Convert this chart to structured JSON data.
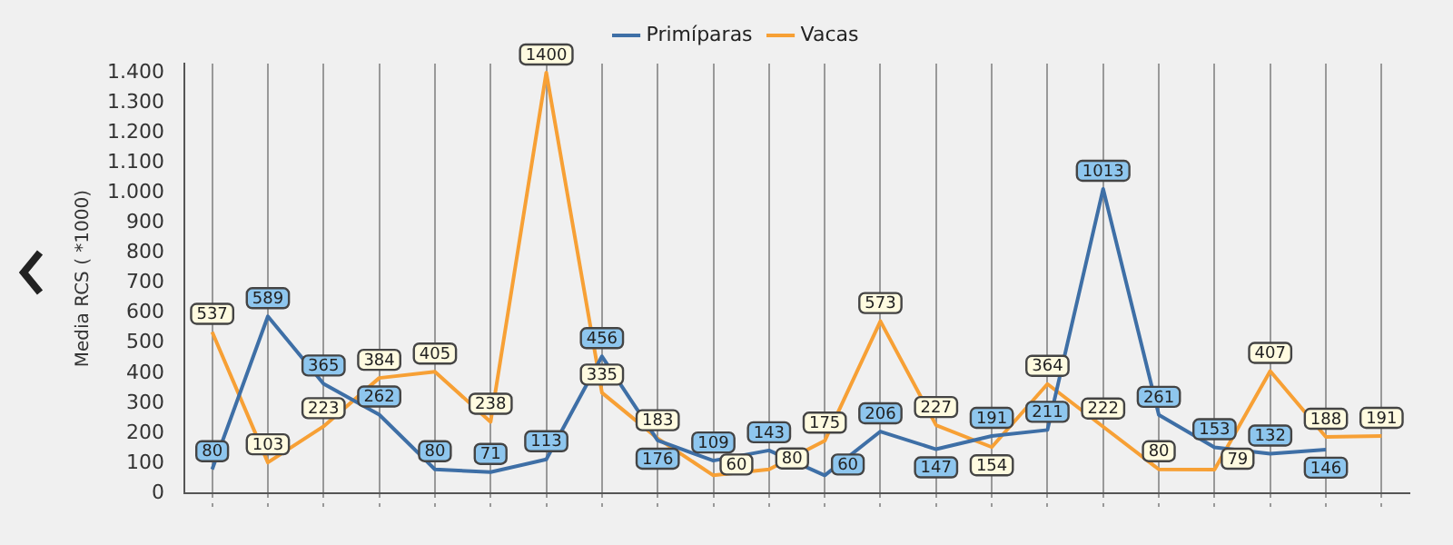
{
  "chart_data": {
    "type": "line",
    "ylabel": "Media RCS ( *1000)",
    "categories": [
      null,
      null,
      null,
      null,
      null,
      null,
      null,
      null,
      null,
      null,
      null,
      null,
      null,
      null,
      null,
      null,
      null,
      null,
      null,
      null,
      null,
      null
    ],
    "series": [
      {
        "name": "Primíparas",
        "color": "#3e6fa6",
        "values": [
          80,
          589,
          365,
          262,
          80,
          71,
          113,
          456,
          176,
          109,
          143,
          60,
          206,
          147,
          191,
          211,
          1013,
          261,
          153,
          132,
          146,
          null
        ]
      },
      {
        "name": "Vacas",
        "color": "#f7a035",
        "values": [
          537,
          103,
          223,
          384,
          405,
          238,
          1400,
          335,
          183,
          60,
          80,
          175,
          573,
          227,
          154,
          364,
          222,
          80,
          79,
          407,
          188,
          191
        ]
      }
    ],
    "ylim": [
      0,
      1430
    ],
    "yticks": [
      0,
      100,
      200,
      300,
      400,
      500,
      600,
      700,
      800,
      900,
      {
        "value": 1000,
        "label": "1.000"
      },
      {
        "value": 1100,
        "label": "1.100"
      },
      {
        "value": 1200,
        "label": "1.200"
      },
      {
        "value": 1300,
        "label": "1.300"
      },
      {
        "value": 1400,
        "label": "1.400"
      }
    ],
    "grid": "x",
    "legend": "top",
    "marker": "none",
    "line_style": "solid",
    "data_labels": true
  }
}
